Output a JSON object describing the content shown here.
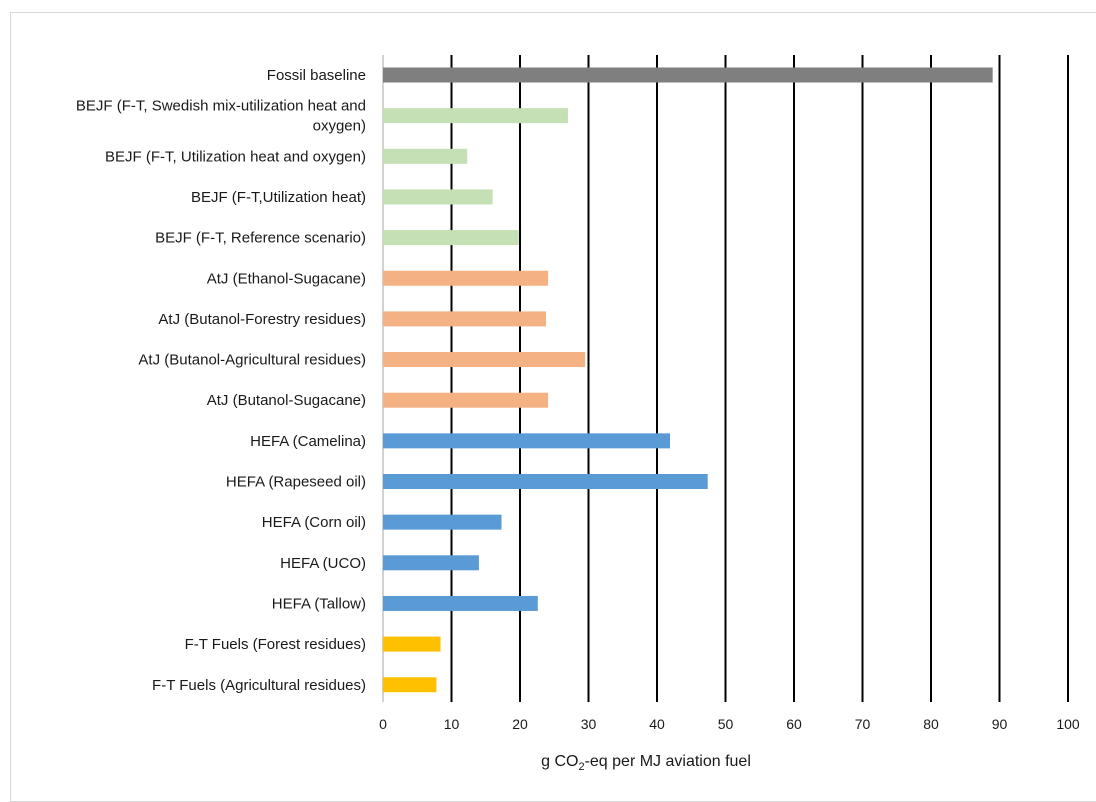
{
  "chart_data": {
    "type": "bar",
    "orientation": "horizontal",
    "categories": [
      "Fossil baseline",
      "BEJF (F-T, Swedish mix-utilization heat and oxygen)",
      "BEJF (F-T, Utilization heat and oxygen)",
      "BEJF (F-T,Utilization heat)",
      "BEJF (F-T, Reference scenario)",
      "AtJ (Ethanol-Sugacane)",
      "AtJ (Butanol-Forestry residues)",
      "AtJ (Butanol-Agricultural residues)",
      "AtJ (Butanol-Sugacane)",
      "HEFA (Camelina)",
      "HEFA (Rapeseed oil)",
      "HEFA (Corn oil)",
      "HEFA (UCO)",
      "HEFA (Tallow)",
      "F-T Fuels (Forest residues)",
      "F-T Fuels (Agricultural residues)"
    ],
    "category_lines": [
      [
        "Fossil baseline"
      ],
      [
        "BEJF (F-T, Swedish mix-utilization heat and",
        "oxygen)"
      ],
      [
        "BEJF (F-T, Utilization heat and oxygen)"
      ],
      [
        "BEJF (F-T,Utilization heat)"
      ],
      [
        "BEJF (F-T, Reference scenario)"
      ],
      [
        "AtJ (Ethanol-Sugacane)"
      ],
      [
        "AtJ (Butanol-Forestry residues)"
      ],
      [
        "AtJ (Butanol-Agricultural residues)"
      ],
      [
        "AtJ (Butanol-Sugacane)"
      ],
      [
        "HEFA (Camelina)"
      ],
      [
        "HEFA (Rapeseed oil)"
      ],
      [
        "HEFA (Corn oil)"
      ],
      [
        "HEFA (UCO)"
      ],
      [
        "HEFA (Tallow)"
      ],
      [
        "F-T Fuels (Forest residues)"
      ],
      [
        "F-T Fuels (Agricultural residues)"
      ]
    ],
    "values": [
      89,
      27,
      12.3,
      16,
      19.8,
      24.1,
      23.8,
      29.5,
      24.1,
      41.9,
      47.4,
      17.3,
      14,
      22.6,
      8.4,
      7.8
    ],
    "colors": [
      "#7f7f7f",
      "#c5e0b4",
      "#c5e0b4",
      "#c5e0b4",
      "#c5e0b4",
      "#f4b183",
      "#f4b183",
      "#f4b183",
      "#f4b183",
      "#5b9bd5",
      "#5b9bd5",
      "#5b9bd5",
      "#5b9bd5",
      "#5b9bd5",
      "#ffc000",
      "#ffc000"
    ],
    "xlim": [
      0,
      100
    ],
    "xticks": [
      "0",
      "10",
      "20",
      "30",
      "40",
      "50",
      "60",
      "70",
      "80",
      "90",
      "100"
    ],
    "xlabel_parts": [
      "g CO",
      "2",
      "-eq per MJ aviation fuel"
    ],
    "grid": true,
    "title": ""
  }
}
